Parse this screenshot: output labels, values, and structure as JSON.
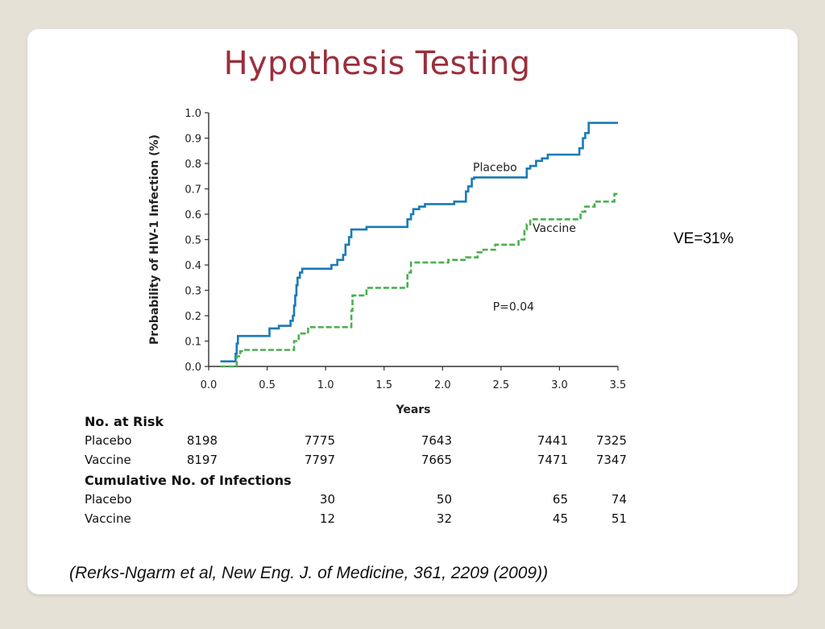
{
  "slide": {
    "title": "Hypothesis Testing",
    "ve_note": "VE=31%",
    "citation": "(Rerks-Ngarm et al, New Eng. J. of Medicine, 361, 2209 (2009))"
  },
  "chart_data": {
    "type": "line",
    "xlabel": "Years",
    "ylabel": "Probability of HIV-1 Infection (%)",
    "xlim": [
      0.0,
      3.5
    ],
    "ylim": [
      0.0,
      1.0
    ],
    "xticks": [
      "0.0",
      "0.5",
      "1.0",
      "1.5",
      "2.0",
      "2.5",
      "3.0",
      "3.5"
    ],
    "yticks": [
      "0.0",
      "0.1",
      "0.2",
      "0.3",
      "0.4",
      "0.5",
      "0.6",
      "0.7",
      "0.8",
      "0.9",
      "1.0"
    ],
    "step": true,
    "series": [
      {
        "name": "Placebo",
        "color": "#1a7ab7",
        "dash": false,
        "points": [
          [
            0.1,
            0.02
          ],
          [
            0.22,
            0.02
          ],
          [
            0.23,
            0.05
          ],
          [
            0.24,
            0.09
          ],
          [
            0.25,
            0.12
          ],
          [
            0.5,
            0.12
          ],
          [
            0.52,
            0.15
          ],
          [
            0.58,
            0.15
          ],
          [
            0.6,
            0.16
          ],
          [
            0.67,
            0.16
          ],
          [
            0.7,
            0.18
          ],
          [
            0.72,
            0.2
          ],
          [
            0.73,
            0.24
          ],
          [
            0.74,
            0.28
          ],
          [
            0.75,
            0.32
          ],
          [
            0.76,
            0.35
          ],
          [
            0.78,
            0.37
          ],
          [
            0.8,
            0.385
          ],
          [
            1.0,
            0.385
          ],
          [
            1.05,
            0.4
          ],
          [
            1.1,
            0.42
          ],
          [
            1.15,
            0.44
          ],
          [
            1.17,
            0.48
          ],
          [
            1.2,
            0.51
          ],
          [
            1.22,
            0.54
          ],
          [
            1.35,
            0.55
          ],
          [
            1.68,
            0.55
          ],
          [
            1.7,
            0.58
          ],
          [
            1.73,
            0.6
          ],
          [
            1.75,
            0.62
          ],
          [
            1.8,
            0.63
          ],
          [
            1.85,
            0.64
          ],
          [
            2.05,
            0.64
          ],
          [
            2.1,
            0.65
          ],
          [
            2.18,
            0.65
          ],
          [
            2.2,
            0.69
          ],
          [
            2.22,
            0.71
          ],
          [
            2.25,
            0.74
          ],
          [
            2.27,
            0.745
          ],
          [
            2.7,
            0.745
          ],
          [
            2.72,
            0.78
          ],
          [
            2.75,
            0.79
          ],
          [
            2.8,
            0.81
          ],
          [
            2.85,
            0.82
          ],
          [
            2.9,
            0.835
          ],
          [
            3.15,
            0.835
          ],
          [
            3.17,
            0.86
          ],
          [
            3.2,
            0.9
          ],
          [
            3.22,
            0.92
          ],
          [
            3.25,
            0.96
          ],
          [
            3.5,
            0.96
          ]
        ]
      },
      {
        "name": "Vaccine",
        "color": "#4caf50",
        "dash": true,
        "points": [
          [
            0.1,
            0.0
          ],
          [
            0.22,
            0.0
          ],
          [
            0.24,
            0.04
          ],
          [
            0.27,
            0.06
          ],
          [
            0.3,
            0.065
          ],
          [
            0.7,
            0.065
          ],
          [
            0.73,
            0.1
          ],
          [
            0.77,
            0.13
          ],
          [
            0.85,
            0.155
          ],
          [
            1.2,
            0.155
          ],
          [
            1.22,
            0.22
          ],
          [
            1.23,
            0.28
          ],
          [
            1.3,
            0.28
          ],
          [
            1.35,
            0.31
          ],
          [
            1.65,
            0.31
          ],
          [
            1.7,
            0.37
          ],
          [
            1.73,
            0.41
          ],
          [
            2.0,
            0.41
          ],
          [
            2.05,
            0.42
          ],
          [
            2.2,
            0.43
          ],
          [
            2.3,
            0.45
          ],
          [
            2.35,
            0.46
          ],
          [
            2.45,
            0.48
          ],
          [
            2.6,
            0.48
          ],
          [
            2.65,
            0.5
          ],
          [
            2.7,
            0.54
          ],
          [
            2.72,
            0.56
          ],
          [
            2.75,
            0.58
          ],
          [
            3.15,
            0.58
          ],
          [
            3.18,
            0.61
          ],
          [
            3.22,
            0.63
          ],
          [
            3.3,
            0.65
          ],
          [
            3.45,
            0.65
          ],
          [
            3.47,
            0.68
          ],
          [
            3.5,
            0.68
          ]
        ]
      }
    ],
    "annotations": [
      {
        "text": "Placebo",
        "x": 2.26,
        "y": 0.77
      },
      {
        "text": "Vaccine",
        "x": 2.77,
        "y": 0.53
      },
      {
        "text": "P=0.04",
        "x": 2.43,
        "y": 0.22
      }
    ]
  },
  "table": {
    "at_risk_header": "No. at Risk",
    "infections_header": "Cumulative No. of Infections",
    "at_risk": [
      {
        "label": "Placebo",
        "values": [
          "8198",
          "7775",
          "7643",
          "7441",
          "7325"
        ]
      },
      {
        "label": "Vaccine",
        "values": [
          "8197",
          "7797",
          "7665",
          "7471",
          "7347"
        ]
      }
    ],
    "infections": [
      {
        "label": "Placebo",
        "values": [
          "30",
          "50",
          "65",
          "74"
        ]
      },
      {
        "label": "Vaccine",
        "values": [
          "12",
          "32",
          "45",
          "51"
        ]
      }
    ]
  }
}
